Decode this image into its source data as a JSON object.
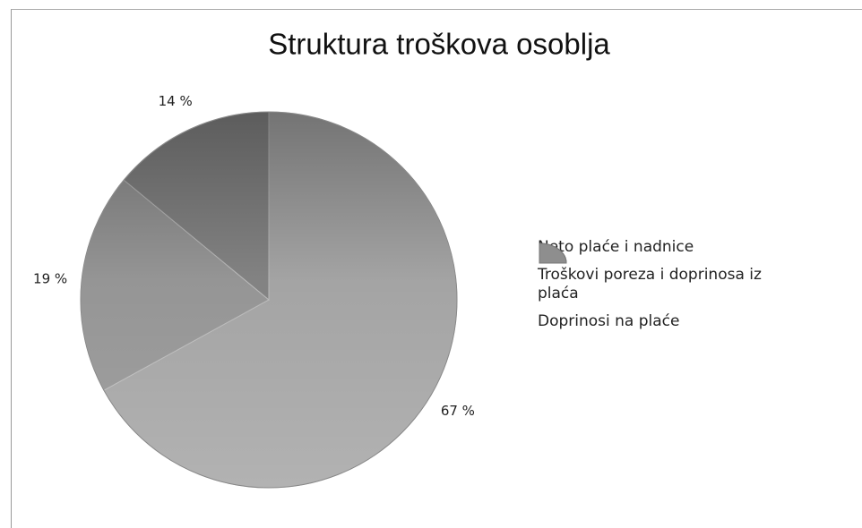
{
  "chart_data": {
    "type": "pie",
    "title": "Struktura troškova osoblja",
    "categories": [
      "Neto plaće i nadnice",
      "Troškovi poreza i doprinosa iz plaća",
      "Doprinosi na plaće"
    ],
    "values": [
      67,
      19,
      14
    ],
    "value_labels": [
      "67 %",
      "19 %",
      "14 %"
    ],
    "colors": [
      "#b2b2b2",
      "#a2a2a2",
      "#8e8e8e"
    ]
  }
}
